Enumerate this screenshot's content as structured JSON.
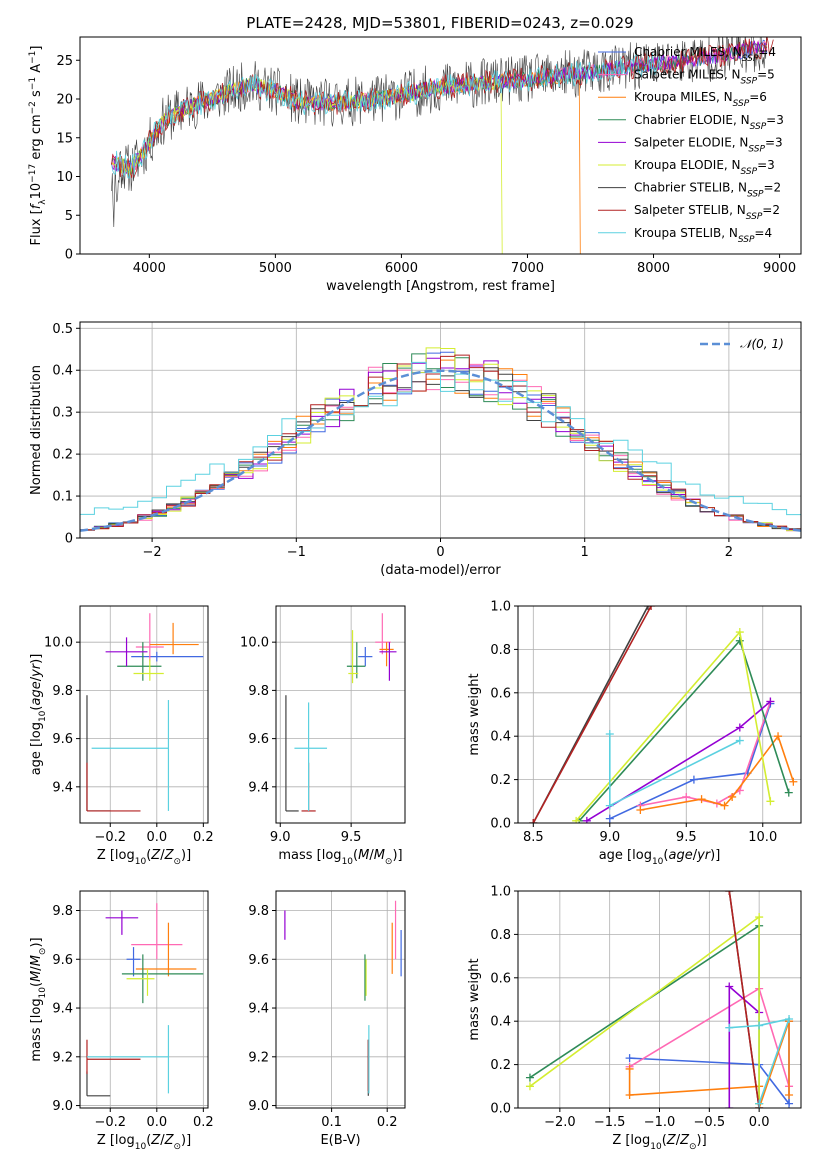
{
  "title": "PLATE=2428, MJD=53801, FIBERID=0243, z=0.029",
  "colors": {
    "Chabrier MILES": "#4169e1",
    "Salpeter MILES": "#ff69b4",
    "Kroupa MILES": "#ff7f0e",
    "Chabrier ELODIE": "#2e8b57",
    "Salpeter ELODIE": "#9400d3",
    "Kroupa ELODIE": "#d4ed31",
    "Chabrier STELIB": "#404040",
    "Salpeter STELIB": "#b22222",
    "Kroupa STELIB": "#5bd1e0",
    "gauss": "#5b8fd6"
  },
  "models": [
    {
      "name": "Chabrier MILES",
      "nssp": 4
    },
    {
      "name": "Salpeter MILES",
      "nssp": 5
    },
    {
      "name": "Kroupa MILES",
      "nssp": 6
    },
    {
      "name": "Chabrier ELODIE",
      "nssp": 3
    },
    {
      "name": "Salpeter ELODIE",
      "nssp": 3
    },
    {
      "name": "Kroupa ELODIE",
      "nssp": 3
    },
    {
      "name": "Chabrier STELIB",
      "nssp": 2
    },
    {
      "name": "Salpeter STELIB",
      "nssp": 2
    },
    {
      "name": "Kroupa STELIB",
      "nssp": 4
    }
  ],
  "chart_data": [
    {
      "type": "line",
      "title": "PLATE=2428, MJD=53801, FIBERID=0243, z=0.029",
      "xlabel": "wavelength [Angstrom, rest frame]",
      "ylabel": "Flux [f_λ 10^-17 erg cm^-2 s^-1 A^-1]",
      "xlim": [
        3450,
        9170
      ],
      "ylim": [
        0,
        28
      ],
      "xticks": [
        4000,
        5000,
        6000,
        7000,
        8000,
        9000
      ],
      "yticks": [
        0,
        5,
        10,
        15,
        20,
        25
      ],
      "spectrum_anchors": [
        [
          3700,
          12
        ],
        [
          3850,
          11
        ],
        [
          3950,
          13
        ],
        [
          4100,
          17
        ],
        [
          4300,
          19
        ],
        [
          4500,
          20
        ],
        [
          4800,
          22
        ],
        [
          5000,
          21
        ],
        [
          5200,
          19.5
        ],
        [
          5500,
          19.5
        ],
        [
          5800,
          20
        ],
        [
          6000,
          20.5
        ],
        [
          6300,
          21.5
        ],
        [
          6600,
          22
        ],
        [
          7000,
          22.5
        ],
        [
          7500,
          23.5
        ],
        [
          8000,
          24.5
        ],
        [
          8500,
          25.5
        ],
        [
          8950,
          27
        ]
      ],
      "drops": [
        {
          "series": "Kroupa ELODIE",
          "x": 6800
        },
        {
          "series": "Kroupa MILES",
          "x": 7420
        }
      ]
    },
    {
      "type": "bar",
      "xlabel": "(data-model)/error",
      "ylabel": "Normed distribution",
      "xlim": [
        -2.5,
        2.5
      ],
      "ylim": [
        0,
        0.515
      ],
      "xticks": [
        -2,
        -1,
        0,
        1,
        2
      ],
      "yticks": [
        0.0,
        0.1,
        0.2,
        0.3,
        0.4,
        0.5
      ],
      "gaussian_label": "𝒩(0, 1)"
    },
    {
      "type": "scatter",
      "xlabel": "Z [log10(Z/Z⊙)]",
      "ylabel": "age [log10(age/yr)]",
      "xlim": [
        -0.33,
        0.22
      ],
      "ylim": [
        9.25,
        10.15
      ],
      "xticks": [
        -0.2,
        0.0,
        0.2
      ],
      "xticklabels": [
        "−0.2",
        "0.0",
        "0.2"
      ],
      "yticks": [
        9.4,
        9.6,
        9.8,
        10.0
      ],
      "yticklabels": [
        "9.4",
        "9.6",
        "9.8",
        "10.0"
      ],
      "points": [
        {
          "s": "Chabrier MILES",
          "x": 0.0,
          "xlo": -0.11,
          "xhi": 0.2,
          "y": 9.94,
          "ylo": 9.92,
          "yhi": 9.96
        },
        {
          "s": "Salpeter MILES",
          "x": -0.03,
          "xlo": -0.09,
          "xhi": 0.03,
          "y": 9.98,
          "ylo": 9.92,
          "yhi": 10.12
        },
        {
          "s": "Kroupa MILES",
          "x": 0.07,
          "xlo": -0.03,
          "xhi": 0.18,
          "y": 9.99,
          "ylo": 9.95,
          "yhi": 10.08
        },
        {
          "s": "Chabrier ELODIE",
          "x": -0.06,
          "xlo": -0.17,
          "xhi": 0.02,
          "y": 9.9,
          "ylo": 9.84,
          "yhi": 10.0
        },
        {
          "s": "Salpeter ELODIE",
          "x": -0.13,
          "xlo": -0.22,
          "xhi": -0.04,
          "y": 9.96,
          "ylo": 9.9,
          "yhi": 10.02
        },
        {
          "s": "Kroupa ELODIE",
          "x": -0.03,
          "xlo": -0.1,
          "xhi": 0.03,
          "y": 9.87,
          "ylo": 9.84,
          "yhi": 9.93
        },
        {
          "s": "Chabrier STELIB",
          "x": -0.3,
          "xlo": -0.3,
          "xhi": -0.2,
          "y": 9.3,
          "ylo": 9.3,
          "yhi": 9.78
        },
        {
          "s": "Salpeter STELIB",
          "x": -0.3,
          "xlo": -0.3,
          "xhi": -0.07,
          "y": 9.3,
          "ylo": 9.3,
          "yhi": 9.5
        },
        {
          "s": "Kroupa STELIB",
          "x": 0.05,
          "xlo": -0.28,
          "xhi": 0.05,
          "y": 9.56,
          "ylo": 9.3,
          "yhi": 9.76
        }
      ]
    },
    {
      "type": "scatter",
      "xlabel": "mass [log10(M/M⊙)]",
      "ylabel": "",
      "xlim": [
        8.97,
        9.88
      ],
      "ylim": [
        9.25,
        10.15
      ],
      "xticks": [
        9.0,
        9.5
      ],
      "xticklabels": [
        "9.0",
        "9.5"
      ],
      "yticks": [
        9.4,
        9.6,
        9.8,
        10.0
      ],
      "yticklabels": [
        "9.4",
        "9.6",
        "9.8",
        "10.0"
      ],
      "points": [
        {
          "s": "Chabrier MILES",
          "x": 9.6,
          "xlo": 9.55,
          "xhi": 9.65,
          "y": 9.94,
          "ylo": 9.9,
          "yhi": 9.98
        },
        {
          "s": "Salpeter MILES",
          "x": 9.72,
          "xlo": 9.67,
          "xhi": 9.78,
          "y": 10.0,
          "ylo": 9.95,
          "yhi": 10.12
        },
        {
          "s": "Kroupa MILES",
          "x": 9.75,
          "xlo": 9.7,
          "xhi": 9.8,
          "y": 9.97,
          "ylo": 9.9,
          "yhi": 10.0
        },
        {
          "s": "Chabrier ELODIE",
          "x": 9.54,
          "xlo": 9.47,
          "xhi": 9.6,
          "y": 9.9,
          "ylo": 9.85,
          "yhi": 10.0
        },
        {
          "s": "Salpeter ELODIE",
          "x": 9.77,
          "xlo": 9.7,
          "xhi": 9.82,
          "y": 9.96,
          "ylo": 9.84,
          "yhi": 10.0
        },
        {
          "s": "Kroupa ELODIE",
          "x": 9.51,
          "xlo": 9.48,
          "xhi": 9.55,
          "y": 9.87,
          "ylo": 9.83,
          "yhi": 10.05
        },
        {
          "s": "Chabrier STELIB",
          "x": 9.04,
          "xlo": 9.04,
          "xhi": 9.13,
          "y": 9.3,
          "ylo": 9.3,
          "yhi": 9.78
        },
        {
          "s": "Salpeter STELIB",
          "x": 9.2,
          "xlo": 9.15,
          "xhi": 9.25,
          "y": 9.3,
          "ylo": 9.3,
          "yhi": 9.5
        },
        {
          "s": "Kroupa STELIB",
          "x": 9.2,
          "xlo": 9.1,
          "xhi": 9.33,
          "y": 9.56,
          "ylo": 9.3,
          "yhi": 9.75
        }
      ]
    },
    {
      "type": "line",
      "xlabel": "age [log10(age/yr)]",
      "ylabel": "mass weight",
      "xlim": [
        8.4,
        10.25
      ],
      "ylim": [
        0,
        1
      ],
      "xticks": [
        8.5,
        9.0,
        9.5,
        10.0
      ],
      "xticklabels": [
        "8.5",
        "9.0",
        "9.5",
        "10.0"
      ],
      "yticks": [
        0.0,
        0.2,
        0.4,
        0.6,
        0.8,
        1.0
      ],
      "yticklabels": [
        "0.0",
        "0.2",
        "0.4",
        "0.6",
        "0.8",
        "1.0"
      ],
      "series": [
        {
          "s": "Chabrier MILES",
          "pts": [
            [
              9.0,
              0.02
            ],
            [
              9.55,
              0.2
            ],
            [
              9.9,
              0.23
            ],
            [
              10.05,
              0.55
            ]
          ]
        },
        {
          "s": "Salpeter MILES",
          "pts": [
            [
              9.2,
              0.08
            ],
            [
              9.5,
              0.12
            ],
            [
              9.7,
              0.09
            ],
            [
              9.85,
              0.15
            ],
            [
              10.05,
              0.56
            ]
          ]
        },
        {
          "s": "Kroupa MILES",
          "pts": [
            [
              9.2,
              0.06
            ],
            [
              9.6,
              0.11
            ],
            [
              9.75,
              0.08
            ],
            [
              9.8,
              0.12
            ],
            [
              10.1,
              0.4
            ],
            [
              10.2,
              0.19
            ]
          ]
        },
        {
          "s": "Chabrier ELODIE",
          "pts": [
            [
              8.8,
              0.01
            ],
            [
              9.85,
              0.84
            ],
            [
              10.17,
              0.14
            ]
          ]
        },
        {
          "s": "Salpeter ELODIE",
          "pts": [
            [
              8.85,
              0.01
            ],
            [
              9.85,
              0.44
            ],
            [
              10.05,
              0.56
            ]
          ]
        },
        {
          "s": "Kroupa ELODIE",
          "pts": [
            [
              8.78,
              0.01
            ],
            [
              9.85,
              0.88
            ],
            [
              10.05,
              0.1
            ]
          ]
        },
        {
          "s": "Chabrier STELIB",
          "pts": [
            [
              8.5,
              0.0
            ],
            [
              9.25,
              1.0
            ]
          ]
        },
        {
          "s": "Salpeter STELIB",
          "pts": [
            [
              8.5,
              0.0
            ],
            [
              9.27,
              1.0
            ]
          ]
        },
        {
          "s": "Kroupa STELIB",
          "pts": [
            [
              9.0,
              0.41
            ],
            [
              9.0,
              0.08
            ],
            [
              9.85,
              0.38
            ]
          ]
        }
      ]
    },
    {
      "type": "scatter",
      "xlabel": "Z [log10(Z/Z⊙)]",
      "ylabel": "mass [log10(M/M⊙)]",
      "xlim": [
        -0.33,
        0.22
      ],
      "ylim": [
        8.99,
        9.88
      ],
      "xticks": [
        -0.2,
        0.0,
        0.2
      ],
      "xticklabels": [
        "−0.2",
        "0.0",
        "0.2"
      ],
      "yticks": [
        9.0,
        9.2,
        9.4,
        9.6,
        9.8
      ],
      "yticklabels": [
        "9.0",
        "9.2",
        "9.4",
        "9.6",
        "9.8"
      ],
      "points": [
        {
          "s": "Chabrier MILES",
          "x": -0.1,
          "xlo": -0.13,
          "xhi": -0.07,
          "y": 9.6,
          "ylo": 9.53,
          "yhi": 9.65
        },
        {
          "s": "Salpeter MILES",
          "x": 0.0,
          "xlo": -0.11,
          "xhi": 0.11,
          "y": 9.66,
          "ylo": 9.6,
          "yhi": 9.83
        },
        {
          "s": "Kroupa MILES",
          "x": 0.05,
          "xlo": -0.09,
          "xhi": 0.17,
          "y": 9.56,
          "ylo": 9.53,
          "yhi": 9.75
        },
        {
          "s": "Chabrier ELODIE",
          "x": -0.06,
          "xlo": -0.15,
          "xhi": 0.2,
          "y": 9.54,
          "ylo": 9.42,
          "yhi": 9.62
        },
        {
          "s": "Salpeter ELODIE",
          "x": -0.15,
          "xlo": -0.22,
          "xhi": -0.08,
          "y": 9.77,
          "ylo": 9.7,
          "yhi": 9.8
        },
        {
          "s": "Kroupa ELODIE",
          "x": -0.04,
          "xlo": -0.13,
          "xhi": -0.01,
          "y": 9.52,
          "ylo": 9.45,
          "yhi": 9.56
        },
        {
          "s": "Chabrier STELIB",
          "x": -0.3,
          "xlo": -0.3,
          "xhi": -0.2,
          "y": 9.04,
          "ylo": 9.04,
          "yhi": 9.14
        },
        {
          "s": "Salpeter STELIB",
          "x": -0.3,
          "xlo": -0.3,
          "xhi": -0.07,
          "y": 9.19,
          "ylo": 9.13,
          "yhi": 9.27
        },
        {
          "s": "Kroupa STELIB",
          "x": 0.05,
          "xlo": -0.3,
          "xhi": 0.05,
          "y": 9.2,
          "ylo": 9.05,
          "yhi": 9.33
        }
      ]
    },
    {
      "type": "scatter",
      "xlabel": "E(B-V)",
      "ylabel": "",
      "xlim": [
        0.0,
        0.232
      ],
      "ylim": [
        8.99,
        9.88
      ],
      "xticks": [
        0.1,
        0.2
      ],
      "xticklabels": [
        "0.1",
        "0.2"
      ],
      "yticks": [
        9.0,
        9.2,
        9.4,
        9.6,
        9.8
      ],
      "yticklabels": [
        "9.0",
        "9.2",
        "9.4",
        "9.6",
        "9.8"
      ],
      "points": [
        {
          "s": "Chabrier MILES",
          "x": 0.225,
          "xlo": 0.225,
          "xhi": 0.225,
          "y": 9.6,
          "ylo": 9.53,
          "yhi": 9.72
        },
        {
          "s": "Salpeter MILES",
          "x": 0.215,
          "xlo": 0.215,
          "xhi": 0.215,
          "y": 9.7,
          "ylo": 9.6,
          "yhi": 9.84
        },
        {
          "s": "Kroupa MILES",
          "x": 0.209,
          "xlo": 0.209,
          "xhi": 0.209,
          "y": 9.65,
          "ylo": 9.54,
          "yhi": 9.75
        },
        {
          "s": "Chabrier ELODIE",
          "x": 0.16,
          "xlo": 0.16,
          "xhi": 0.16,
          "y": 9.53,
          "ylo": 9.43,
          "yhi": 9.62
        },
        {
          "s": "Salpeter ELODIE",
          "x": 0.016,
          "xlo": 0.016,
          "xhi": 0.016,
          "y": 9.74,
          "ylo": 9.68,
          "yhi": 9.8
        },
        {
          "s": "Kroupa ELODIE",
          "x": 0.162,
          "xlo": 0.162,
          "xhi": 0.162,
          "y": 9.52,
          "ylo": 9.45,
          "yhi": 9.6
        },
        {
          "s": "Chabrier STELIB",
          "x": 0.166,
          "xlo": 0.166,
          "xhi": 0.166,
          "y": 9.18,
          "ylo": 9.04,
          "yhi": 9.27
        },
        {
          "s": "Salpeter STELIB",
          "x": 0.166,
          "xlo": 0.166,
          "xhi": 0.166,
          "y": 9.17,
          "ylo": 9.06,
          "yhi": 9.27
        },
        {
          "s": "Kroupa STELIB",
          "x": 0.167,
          "xlo": 0.167,
          "xhi": 0.167,
          "y": 9.2,
          "ylo": 9.05,
          "yhi": 9.33
        }
      ]
    },
    {
      "type": "line",
      "xlabel": "Z [log10(Z/Z⊙)]",
      "ylabel": "mass weight",
      "xlim": [
        -2.42,
        0.42
      ],
      "ylim": [
        0,
        1
      ],
      "xticks": [
        -2.0,
        -1.5,
        -1.0,
        -0.5,
        0.0
      ],
      "xticklabels": [
        "−2.0",
        "−1.5",
        "−1.0",
        "−0.5",
        "0.0"
      ],
      "yticks": [
        0.0,
        0.2,
        0.4,
        0.6,
        0.8,
        1.0
      ],
      "yticklabels": [
        "0.0",
        "0.2",
        "0.4",
        "0.6",
        "0.8",
        "1.0"
      ],
      "series": [
        {
          "s": "Chabrier MILES",
          "pts": [
            [
              -1.3,
              0.23
            ],
            [
              0.0,
              0.2
            ],
            [
              0.3,
              0.02
            ],
            [
              0.3,
              0.4
            ]
          ]
        },
        {
          "s": "Salpeter MILES",
          "pts": [
            [
              -1.3,
              0.19
            ],
            [
              0.0,
              0.55
            ],
            [
              0.3,
              0.1
            ]
          ]
        },
        {
          "s": "Kroupa MILES",
          "pts": [
            [
              -1.3,
              0.18
            ],
            [
              -1.3,
              0.06
            ],
            [
              0.0,
              0.1
            ],
            [
              0.0,
              0.0
            ],
            [
              0.3,
              0.4
            ],
            [
              0.3,
              0.06
            ]
          ]
        },
        {
          "s": "Chabrier ELODIE",
          "pts": [
            [
              -2.3,
              0.14
            ],
            [
              0.0,
              0.84
            ],
            [
              0.0,
              0.02
            ]
          ]
        },
        {
          "s": "Salpeter ELODIE",
          "pts": [
            [
              -0.3,
              0.0
            ],
            [
              -0.3,
              0.56
            ],
            [
              0.0,
              0.44
            ]
          ]
        },
        {
          "s": "Kroupa ELODIE",
          "pts": [
            [
              -2.3,
              0.1
            ],
            [
              0.0,
              0.88
            ],
            [
              0.0,
              0.02
            ]
          ]
        },
        {
          "s": "Chabrier STELIB",
          "pts": [
            [
              -0.3,
              1.0
            ],
            [
              0.0,
              0.0
            ]
          ]
        },
        {
          "s": "Salpeter STELIB",
          "pts": [
            [
              -0.3,
              1.0
            ],
            [
              0.0,
              0.0
            ]
          ]
        },
        {
          "s": "Kroupa STELIB",
          "pts": [
            [
              -0.3,
              0.37
            ],
            [
              0.0,
              0.38
            ],
            [
              0.3,
              0.41
            ],
            [
              0.0,
              0.02
            ]
          ]
        }
      ]
    }
  ]
}
